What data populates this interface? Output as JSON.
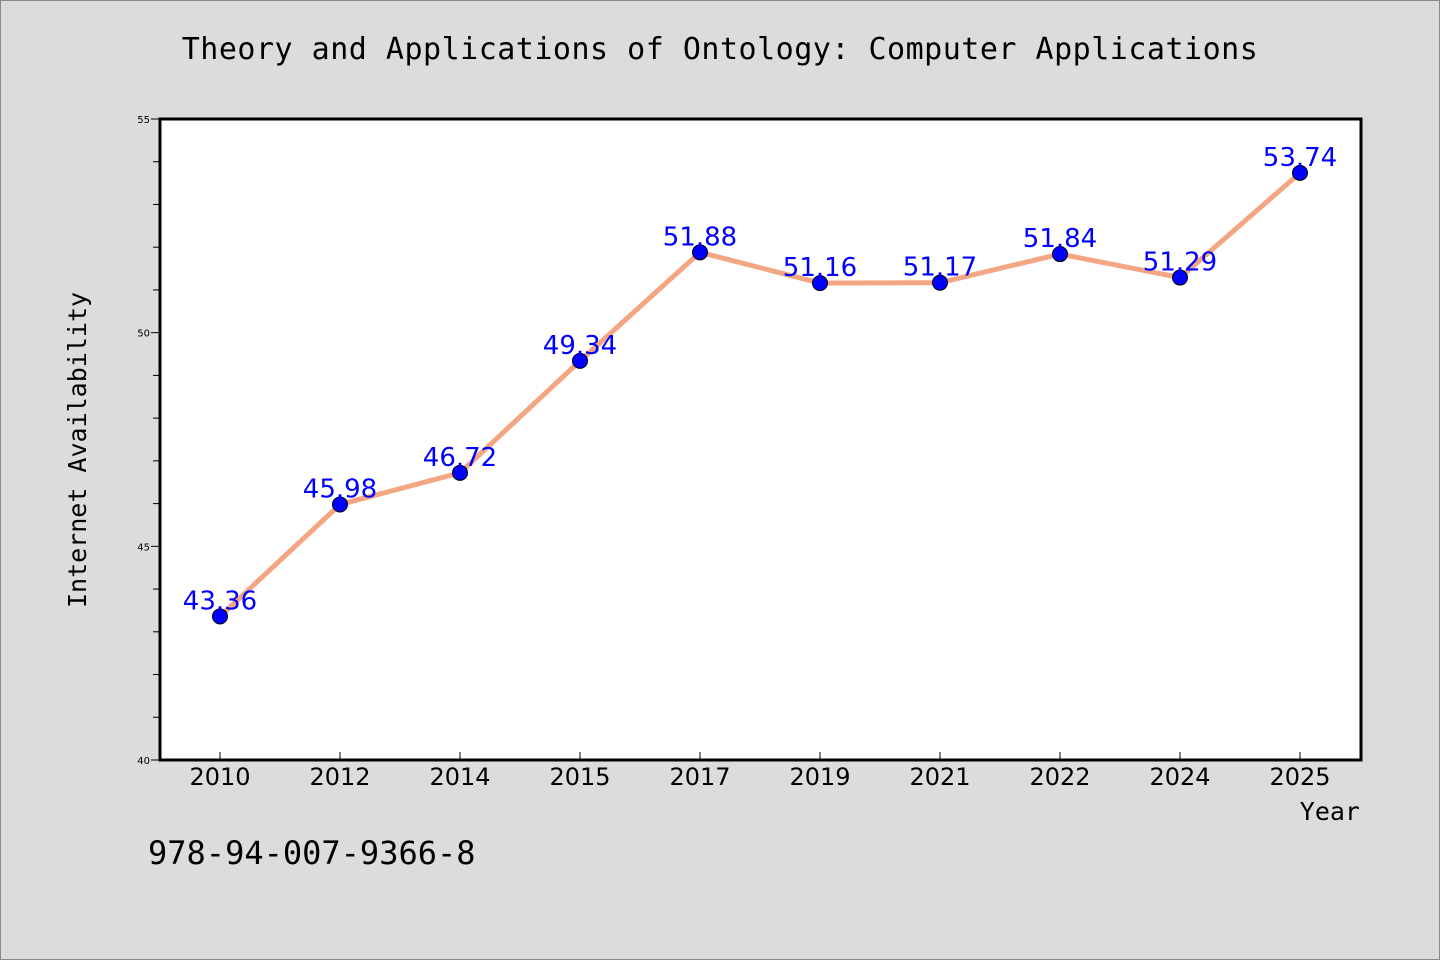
{
  "chart_data": {
    "type": "line",
    "title": "Theory and Applications of Ontology: Computer Applications",
    "xlabel": "Year",
    "ylabel": "Internet Availability",
    "categories": [
      "2010",
      "2012",
      "2014",
      "2015",
      "2017",
      "2019",
      "2021",
      "2022",
      "2024",
      "2025"
    ],
    "series": [
      {
        "values": [
          43.36,
          45.98,
          46.72,
          49.34,
          51.88,
          51.16,
          51.17,
          51.84,
          51.29,
          53.74
        ],
        "labels": [
          "43.36",
          "45.98",
          "46.72",
          "49.34",
          "51.88",
          "51.16",
          "51.17",
          "51.84",
          "51.29",
          "53.74"
        ],
        "line_color": "#f4a582",
        "marker_color": "#0000ff",
        "label_color": "#0000ff"
      }
    ],
    "ylim": [
      40,
      55
    ],
    "yticks": [
      "40",
      "45",
      "50",
      "55"
    ],
    "grid": false,
    "legend": "none"
  },
  "footer": {
    "isbn": "978-94-007-9366-8"
  },
  "colors": {
    "background": "#dcdcdc",
    "plot_background": "#ffffff",
    "line": "#f4a582",
    "marker": "#0000ff"
  }
}
